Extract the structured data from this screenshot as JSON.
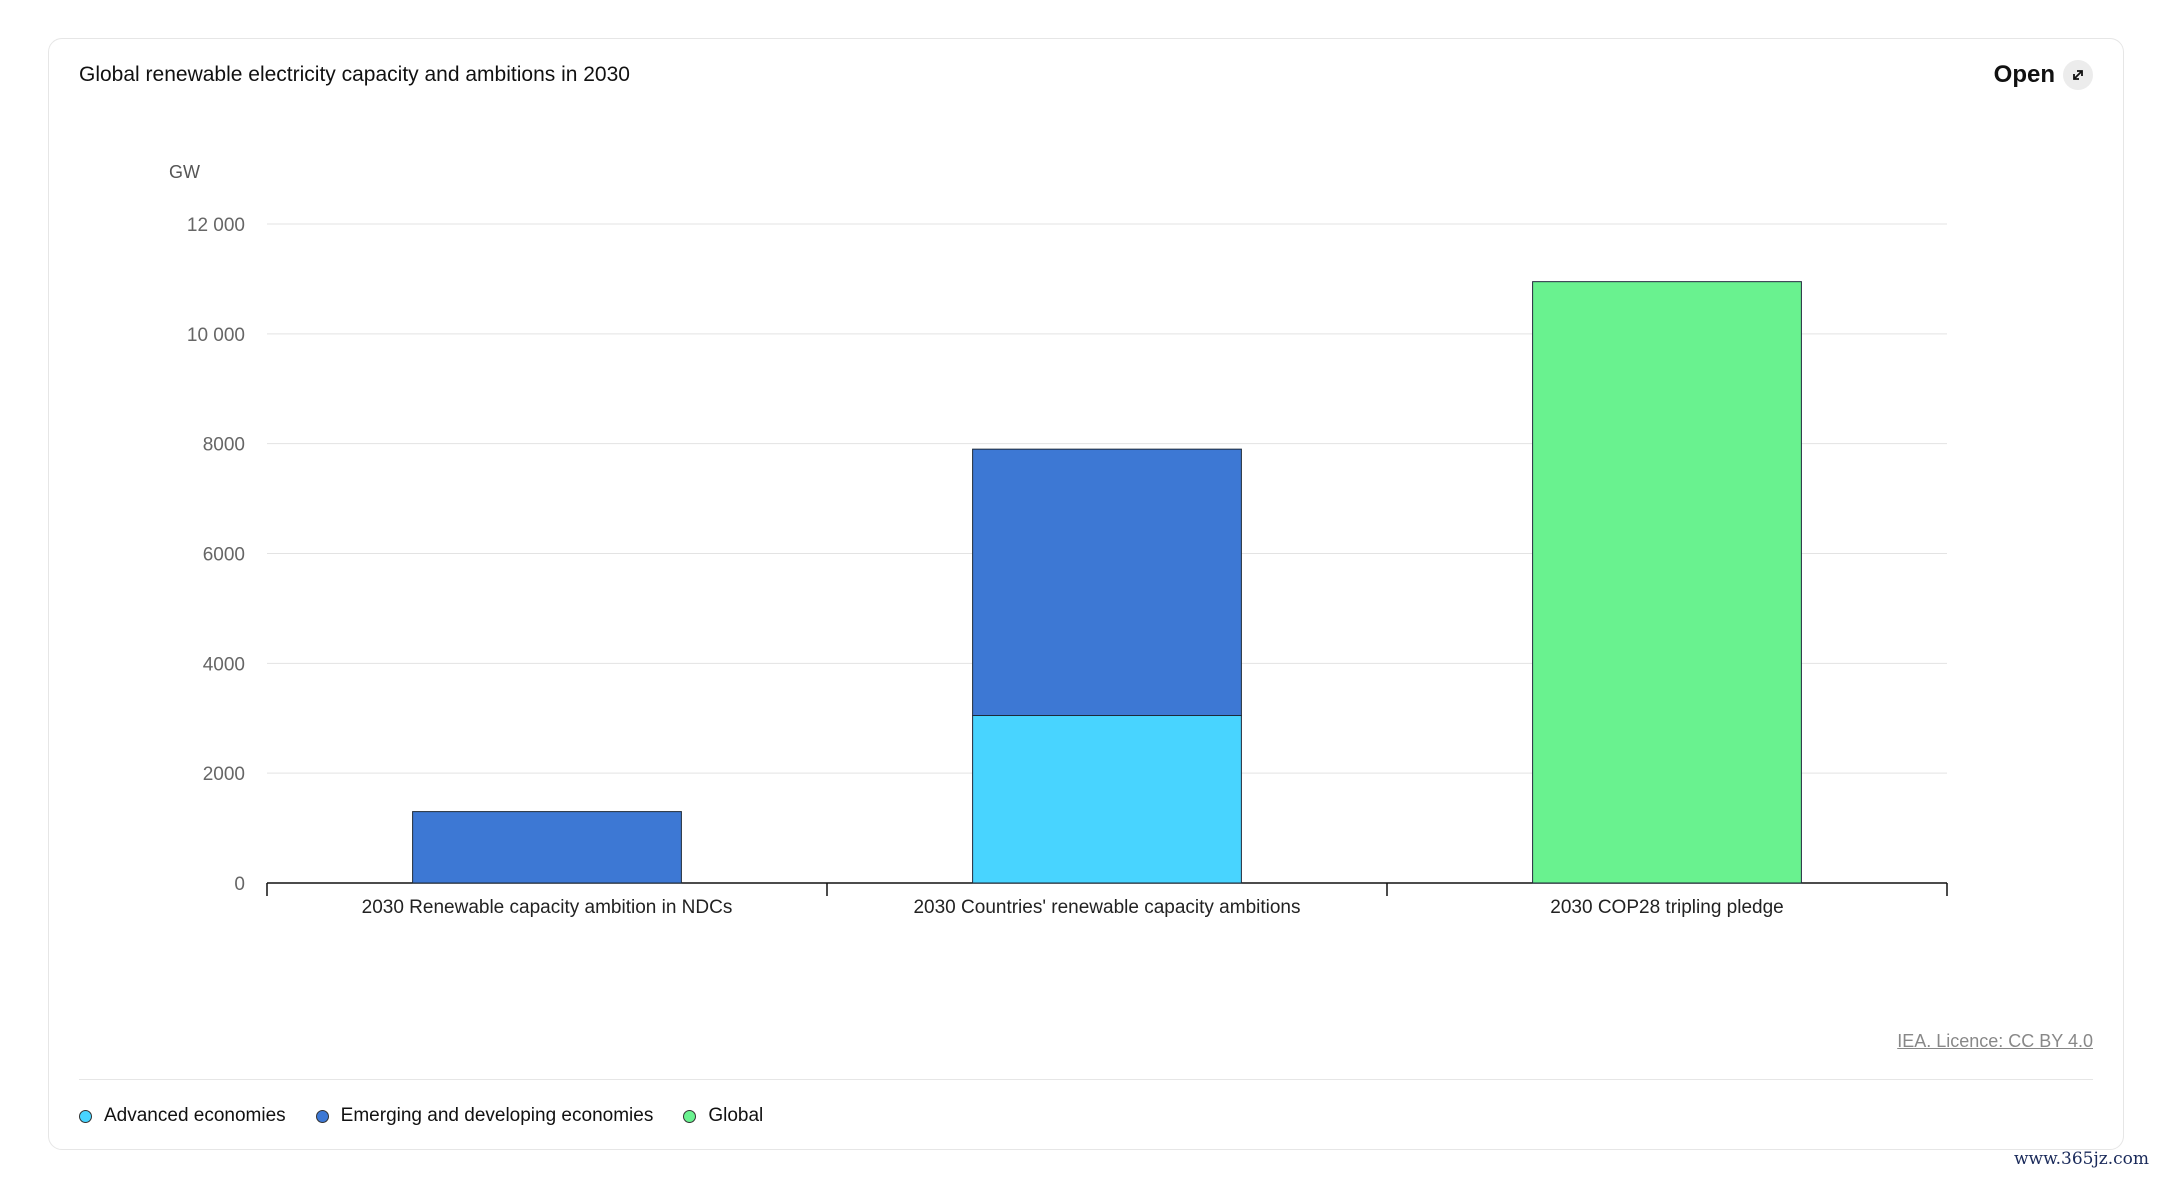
{
  "header": {
    "title": "Global renewable electricity capacity and ambitions in 2030",
    "open_label": "Open"
  },
  "source": {
    "label": "IEA. Licence: CC BY 4.0"
  },
  "watermark": "www.365jz.com",
  "colors": {
    "advanced": "#48d4ff",
    "emerging": "#3d78d4",
    "global": "#69f28f"
  },
  "legend": [
    {
      "label": "Advanced economies",
      "color": "#48d4ff"
    },
    {
      "label": "Emerging and developing economies",
      "color": "#3d78d4"
    },
    {
      "label": "Global",
      "color": "#69f28f"
    }
  ],
  "chart_data": {
    "type": "bar",
    "stacked": true,
    "title": "Global renewable electricity capacity and ambitions in 2030",
    "ylabel": "GW",
    "xlabel": "",
    "ylim": [
      0,
      12000
    ],
    "yticks": [
      0,
      2000,
      4000,
      6000,
      8000,
      10000,
      12000
    ],
    "ytick_labels": [
      "0",
      "2000",
      "4000",
      "6000",
      "8000",
      "10 000",
      "12 000"
    ],
    "grid": true,
    "legend_position": "bottom-left",
    "categories": [
      "2030 Renewable capacity ambition in NDCs",
      "2030 Countries' renewable capacity ambitions",
      "2030 COP28 tripling pledge"
    ],
    "series": [
      {
        "name": "Advanced economies",
        "color": "#48d4ff",
        "values": [
          0,
          3050,
          0
        ]
      },
      {
        "name": "Emerging and developing economies",
        "color": "#3d78d4",
        "values": [
          1300,
          4850,
          0
        ]
      },
      {
        "name": "Global",
        "color": "#69f28f",
        "values": [
          0,
          0,
          10950
        ]
      }
    ]
  }
}
